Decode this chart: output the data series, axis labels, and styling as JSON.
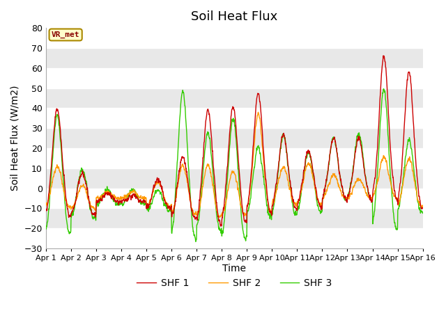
{
  "title": "Soil Heat Flux",
  "xlabel": "Time",
  "ylabel": "Soil Heat Flux (W/m2)",
  "xlim": [
    0,
    15
  ],
  "ylim": [
    -30,
    80
  ],
  "yticks": [
    -30,
    -20,
    -10,
    0,
    10,
    20,
    30,
    40,
    50,
    60,
    70,
    80
  ],
  "xtick_labels": [
    "Apr 1",
    "Apr 2",
    "Apr 3",
    "Apr 4",
    "Apr 5",
    "Apr 6",
    "Apr 7",
    "Apr 8",
    "Apr 9",
    "Apr 10",
    "Apr 11",
    "Apr 12",
    "Apr 13",
    "Apr 14",
    "Apr 15",
    "Apr 16"
  ],
  "shf1_color": "#cc0000",
  "shf2_color": "#ff9900",
  "shf3_color": "#33cc00",
  "legend_labels": [
    "SHF 1",
    "SHF 2",
    "SHF 3"
  ],
  "tag_text": "VR_met",
  "tag_bg": "#ffffcc",
  "tag_border": "#aa8800",
  "tag_text_color": "#880000",
  "fig_bg": "#ffffff",
  "plot_bg": "#e8e8e8",
  "grid_color": "#ffffff",
  "linewidth": 1.0
}
